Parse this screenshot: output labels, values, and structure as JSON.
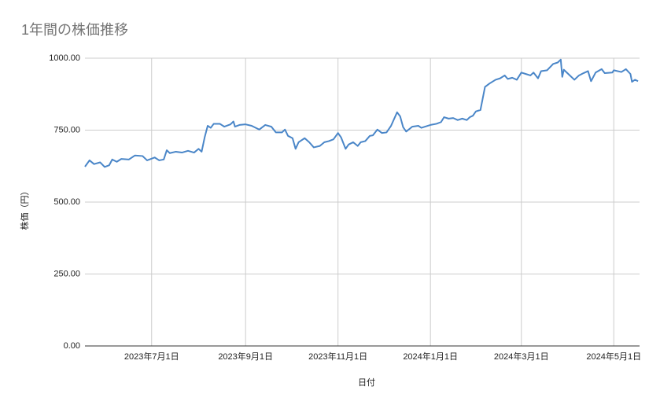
{
  "chart_data": {
    "type": "line",
    "title": "1年間の株価推移",
    "x_label": "日付",
    "y_label": "株価（円）",
    "grid": true,
    "xlim": [
      "2023-05-18",
      "2024-05-18"
    ],
    "xticks": [
      {
        "value": "2023-07-01",
        "label": "2023年7月1日"
      },
      {
        "value": "2023-09-01",
        "label": "2023年9月1日"
      },
      {
        "value": "2023-11-01",
        "label": "2023年11月1日"
      },
      {
        "value": "2024-01-01",
        "label": "2024年1月1日"
      },
      {
        "value": "2024-03-01",
        "label": "2024年3月1日"
      },
      {
        "value": "2024-05-01",
        "label": "2024年5月1日"
      }
    ],
    "ylim": [
      0,
      1000
    ],
    "yticks": [
      {
        "value": 0,
        "label": "0.00"
      },
      {
        "value": 250,
        "label": "250.00"
      },
      {
        "value": 500,
        "label": "500.00"
      },
      {
        "value": 750,
        "label": "750.00"
      },
      {
        "value": 1000,
        "label": "1000.00"
      }
    ],
    "x": [
      "2023-05-18",
      "2023-05-21",
      "2023-05-24",
      "2023-05-28",
      "2023-05-31",
      "2023-06-03",
      "2023-06-05",
      "2023-06-08",
      "2023-06-11",
      "2023-06-16",
      "2023-06-20",
      "2023-06-25",
      "2023-06-28",
      "2023-07-03",
      "2023-07-06",
      "2023-07-09",
      "2023-07-11",
      "2023-07-13",
      "2023-07-17",
      "2023-07-21",
      "2023-07-25",
      "2023-07-29",
      "2023-08-01",
      "2023-08-03",
      "2023-08-05",
      "2023-08-07",
      "2023-08-09",
      "2023-08-11",
      "2023-08-15",
      "2023-08-18",
      "2023-08-22",
      "2023-08-24",
      "2023-08-25",
      "2023-08-28",
      "2023-09-01",
      "2023-09-05",
      "2023-09-10",
      "2023-09-14",
      "2023-09-18",
      "2023-09-21",
      "2023-09-25",
      "2023-09-27",
      "2023-09-29",
      "2023-10-02",
      "2023-10-04",
      "2023-10-06",
      "2023-10-10",
      "2023-10-13",
      "2023-10-16",
      "2023-10-20",
      "2023-10-23",
      "2023-10-26",
      "2023-10-29",
      "2023-11-01",
      "2023-11-03",
      "2023-11-06",
      "2023-11-08",
      "2023-11-11",
      "2023-11-14",
      "2023-11-16",
      "2023-11-19",
      "2023-11-22",
      "2023-11-24",
      "2023-11-27",
      "2023-11-30",
      "2023-12-03",
      "2023-12-06",
      "2023-12-10",
      "2023-12-12",
      "2023-12-14",
      "2023-12-16",
      "2023-12-20",
      "2023-12-24",
      "2023-12-26",
      "2024-01-01",
      "2024-01-05",
      "2024-01-08",
      "2024-01-10",
      "2024-01-13",
      "2024-01-16",
      "2024-01-19",
      "2024-01-22",
      "2024-01-25",
      "2024-01-27",
      "2024-01-29",
      "2024-01-31",
      "2024-02-03",
      "2024-02-06",
      "2024-02-09",
      "2024-02-13",
      "2024-02-16",
      "2024-02-19",
      "2024-02-21",
      "2024-02-24",
      "2024-02-27",
      "2024-03-01",
      "2024-03-04",
      "2024-03-07",
      "2024-03-09",
      "2024-03-12",
      "2024-03-14",
      "2024-03-18",
      "2024-03-22",
      "2024-03-25",
      "2024-03-27",
      "2024-03-28",
      "2024-03-29",
      "2024-04-01",
      "2024-04-05",
      "2024-04-08",
      "2024-04-11",
      "2024-04-14",
      "2024-04-16",
      "2024-04-19",
      "2024-04-23",
      "2024-04-25",
      "2024-04-30",
      "2024-05-01",
      "2024-05-06",
      "2024-05-09",
      "2024-05-12",
      "2024-05-13",
      "2024-05-15",
      "2024-05-17"
    ],
    "series": [
      {
        "color": "#4a86c8",
        "values": [
          623,
          645,
          632,
          638,
          622,
          628,
          648,
          640,
          650,
          648,
          662,
          660,
          645,
          655,
          645,
          648,
          680,
          670,
          675,
          672,
          678,
          672,
          685,
          675,
          725,
          765,
          758,
          772,
          772,
          762,
          770,
          780,
          762,
          768,
          770,
          765,
          752,
          768,
          762,
          742,
          742,
          752,
          730,
          722,
          685,
          708,
          722,
          708,
          690,
          695,
          708,
          712,
          718,
          740,
          725,
          685,
          700,
          708,
          695,
          708,
          712,
          730,
          732,
          752,
          740,
          742,
          765,
          812,
          798,
          760,
          745,
          762,
          765,
          758,
          768,
          772,
          778,
          795,
          790,
          792,
          785,
          790,
          785,
          795,
          800,
          815,
          820,
          900,
          912,
          925,
          930,
          940,
          928,
          932,
          925,
          950,
          945,
          940,
          950,
          930,
          955,
          958,
          980,
          985,
          995,
          935,
          960,
          945,
          925,
          940,
          948,
          955,
          920,
          950,
          962,
          948,
          950,
          958,
          952,
          962,
          945,
          918,
          925,
          920
        ]
      }
    ]
  }
}
